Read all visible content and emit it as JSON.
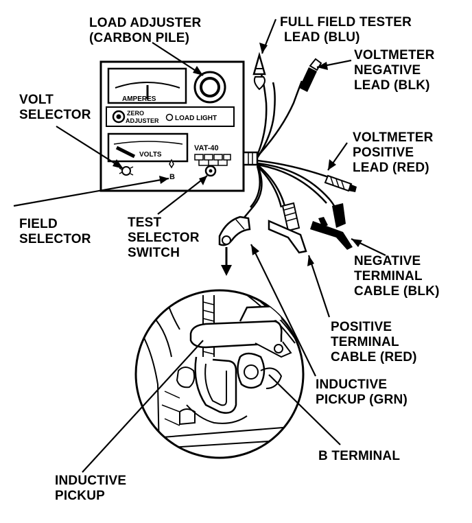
{
  "labels": {
    "load_adjuster": [
      "LOAD ADJUSTER",
      "(CARBON PILE)"
    ],
    "full_field_tester_lead": [
      "FULL FIELD TESTER",
      "LEAD (BLU)"
    ],
    "voltmeter_negative_lead": [
      "VOLTMETER",
      "NEGATIVE",
      "LEAD (BLK)"
    ],
    "volt_selector": [
      "VOLT",
      "SELECTOR"
    ],
    "voltmeter_positive_lead": [
      "VOLTMETER",
      "POSITIVE",
      "LEAD (RED)"
    ],
    "field_selector": [
      "FIELD",
      "SELECTOR"
    ],
    "test_selector_switch": [
      "TEST",
      "SELECTOR",
      "SWITCH"
    ],
    "negative_terminal_cable": [
      "NEGATIVE",
      "TERMINAL",
      "CABLE (BLK)"
    ],
    "positive_terminal_cable": [
      "POSITIVE",
      "TERMINAL",
      "CABLE (RED)"
    ],
    "inductive_pickup_grn": [
      "INDUCTIVE",
      "PICKUP (GRN)"
    ],
    "b_terminal": [
      "B TERMINAL"
    ],
    "inductive_pickup": [
      "INDUCTIVE",
      "PICKUP"
    ]
  },
  "panel": {
    "amperes": "AMPERES",
    "zero_adjuster": [
      "ZERO",
      "ADJUSTER"
    ],
    "load_light": "LOAD LIGHT",
    "volts": "VOLTS",
    "model": "VAT-40",
    "field_b": "B"
  }
}
